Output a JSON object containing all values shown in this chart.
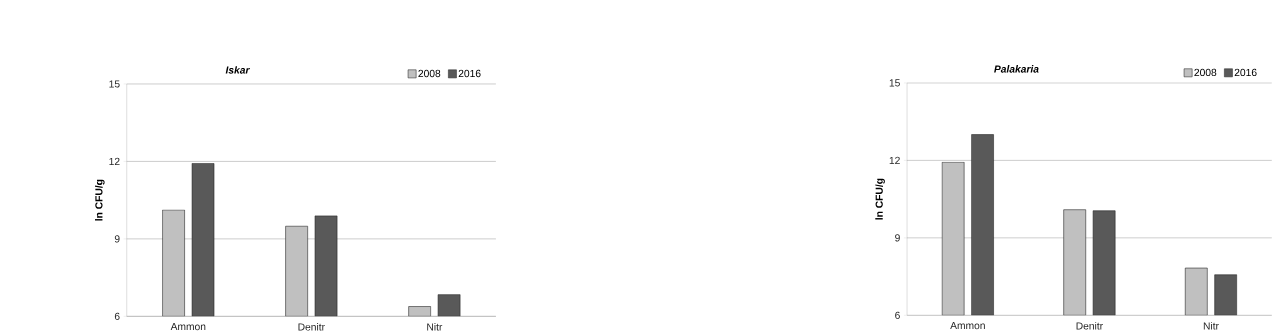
{
  "chart_data": [
    {
      "type": "bar",
      "title": "Iskar",
      "ylabel": "ln CFU/g",
      "categories": [
        "Ammon",
        "Denitr",
        "Nitr"
      ],
      "series": [
        {
          "name": "2008",
          "color": "#c0c0c0",
          "values": [
            10.12,
            9.49,
            6.38
          ]
        },
        {
          "name": "2016",
          "color": "#595959",
          "values": [
            11.92,
            9.89,
            6.84
          ]
        }
      ],
      "ylim": [
        6,
        15
      ],
      "yticks": [
        6,
        9,
        12,
        15
      ],
      "grid": "y",
      "legend": "top right"
    },
    {
      "type": "bar",
      "title": "Palakaria",
      "ylabel": "ln CFU/g",
      "categories": [
        "Ammon",
        "Denitr",
        "Nitr"
      ],
      "series": [
        {
          "name": "2008",
          "color": "#c0c0c0",
          "values": [
            11.93,
            10.09,
            7.83
          ]
        },
        {
          "name": "2016",
          "color": "#595959",
          "values": [
            13.0,
            10.05,
            7.57
          ]
        }
      ],
      "ylim": [
        6,
        15
      ],
      "yticks": [
        6,
        9,
        12,
        15
      ],
      "grid": "y",
      "legend": "top right"
    }
  ]
}
